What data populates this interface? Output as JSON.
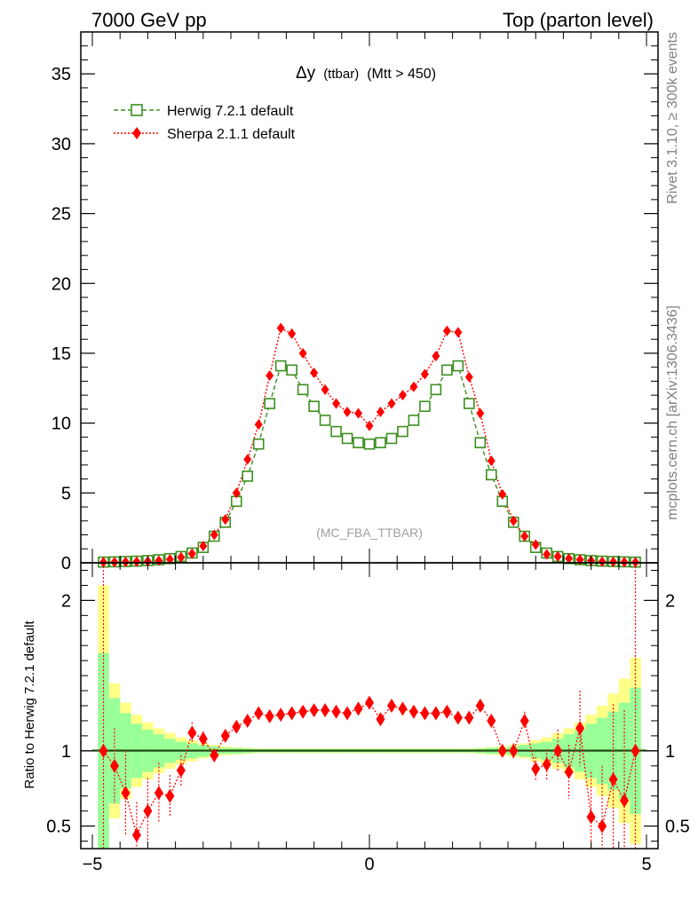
{
  "header": {
    "left": "7000 GeV pp",
    "right": "Top (parton level)"
  },
  "side": {
    "rivet": "Rivet 3.1.10, ≥ 300k events",
    "mcplots": "mcplots.cern.ch [arXiv:1306.3436]"
  },
  "colors": {
    "herwig": "#3c8f1f",
    "sherpa": "#ff0000",
    "band_inner": "#99ff99",
    "band_outer": "#ffff88"
  },
  "chart_data": {
    "type": "line",
    "title": "Δy (ttbar) (Mtt > 450)",
    "title_parts": {
      "symbol": "Δy",
      "small": "(ttbar)",
      "rest": "(Mtt > 450)"
    },
    "watermark": "(MC_FBA_TTBAR)",
    "xlim": [
      -5,
      5
    ],
    "xticks": [
      -5,
      0,
      5
    ],
    "xtick_labels": [
      "−5",
      "0",
      "5"
    ],
    "main": {
      "ylim": [
        0,
        38
      ],
      "yticks": [
        0,
        5,
        10,
        15,
        20,
        25,
        30,
        35
      ],
      "ytick_labels": [
        "0",
        "5",
        "10",
        "15",
        "20",
        "25",
        "30",
        "35"
      ]
    },
    "ratio": {
      "ylabel": "Ratio to Herwig 7.2.1 default",
      "ylim": [
        0.35,
        2.25
      ],
      "yticks": [
        0.5,
        1,
        2
      ],
      "ytick_labels": [
        "0.5",
        "1",
        "2"
      ]
    },
    "x": [
      -4.8,
      -4.6,
      -4.4,
      -4.2,
      -4.0,
      -3.8,
      -3.6,
      -3.4,
      -3.2,
      -3.0,
      -2.8,
      -2.6,
      -2.4,
      -2.2,
      -2.0,
      -1.8,
      -1.6,
      -1.4,
      -1.2,
      -1.0,
      -0.8,
      -0.6,
      -0.4,
      -0.2,
      0.0,
      0.2,
      0.4,
      0.6,
      0.8,
      1.0,
      1.2,
      1.4,
      1.6,
      1.8,
      2.0,
      2.2,
      2.4,
      2.6,
      2.8,
      3.0,
      3.2,
      3.4,
      3.6,
      3.8,
      4.0,
      4.2,
      4.4,
      4.6,
      4.8
    ],
    "series": [
      {
        "name": "Herwig 7.2.1 default",
        "style": "dashed, open squares",
        "values": [
          0.05,
          0.07,
          0.09,
          0.12,
          0.16,
          0.22,
          0.3,
          0.45,
          0.7,
          1.1,
          1.9,
          2.9,
          4.4,
          6.2,
          8.5,
          11.4,
          14.1,
          13.8,
          12.4,
          11.2,
          10.2,
          9.4,
          8.9,
          8.6,
          8.5,
          8.6,
          8.9,
          9.4,
          10.2,
          11.2,
          12.4,
          13.8,
          14.1,
          11.4,
          8.6,
          6.3,
          4.4,
          2.9,
          1.9,
          1.1,
          0.7,
          0.45,
          0.3,
          0.22,
          0.16,
          0.12,
          0.09,
          0.07,
          0.05
        ]
      },
      {
        "name": "Sherpa 2.1.1 default",
        "style": "dotted, filled diamonds",
        "values": [
          0.04,
          0.05,
          0.06,
          0.08,
          0.1,
          0.15,
          0.25,
          0.4,
          0.65,
          1.2,
          2.0,
          3.1,
          5.0,
          7.4,
          9.9,
          13.4,
          16.8,
          16.4,
          15.0,
          13.6,
          12.4,
          11.4,
          10.8,
          10.7,
          9.8,
          10.8,
          11.4,
          12.0,
          12.6,
          13.5,
          14.8,
          16.6,
          16.5,
          13.3,
          10.7,
          7.3,
          4.9,
          3.0,
          1.9,
          1.3,
          0.6,
          0.45,
          0.3,
          0.22,
          0.15,
          0.08,
          0.06,
          0.05,
          0.04
        ]
      }
    ],
    "ratio_values": [
      1.0,
      0.9,
      0.72,
      0.44,
      0.6,
      0.72,
      0.7,
      0.87,
      1.12,
      1.08,
      0.97,
      1.1,
      1.16,
      1.2,
      1.25,
      1.23,
      1.24,
      1.25,
      1.26,
      1.27,
      1.27,
      1.26,
      1.25,
      1.28,
      1.32,
      1.21,
      1.3,
      1.28,
      1.26,
      1.25,
      1.25,
      1.26,
      1.22,
      1.22,
      1.3,
      1.2,
      1.0,
      1.0,
      1.2,
      0.88,
      0.91,
      1.0,
      0.86,
      1.15,
      0.56,
      0.5,
      0.81,
      0.67,
      1.0
    ],
    "ratio_errors": [
      1.4,
      0.25,
      0.28,
      0.22,
      0.22,
      0.2,
      0.14,
      0.1,
      0.07,
      0.05,
      0.04,
      0.03,
      0.03,
      0.02,
      0.02,
      0.02,
      0.02,
      0.02,
      0.02,
      0.02,
      0.02,
      0.02,
      0.02,
      0.02,
      0.02,
      0.02,
      0.02,
      0.02,
      0.02,
      0.02,
      0.02,
      0.02,
      0.02,
      0.02,
      0.03,
      0.03,
      0.04,
      0.05,
      0.06,
      0.08,
      0.1,
      0.14,
      0.18,
      0.25,
      0.3,
      0.4,
      0.5,
      0.6,
      1.4
    ],
    "band_inner": [
      0.65,
      0.35,
      0.25,
      0.18,
      0.14,
      0.11,
      0.08,
      0.06,
      0.05,
      0.04,
      0.03,
      0.02,
      0.02,
      0.015,
      0.01,
      0.01,
      0.01,
      0.01,
      0.01,
      0.01,
      0.01,
      0.01,
      0.01,
      0.01,
      0.01,
      0.01,
      0.01,
      0.01,
      0.01,
      0.01,
      0.01,
      0.01,
      0.01,
      0.01,
      0.015,
      0.02,
      0.02,
      0.03,
      0.04,
      0.05,
      0.06,
      0.08,
      0.11,
      0.14,
      0.18,
      0.22,
      0.26,
      0.32,
      0.42
    ],
    "band_outer": [
      1.1,
      0.45,
      0.32,
      0.24,
      0.19,
      0.15,
      0.12,
      0.09,
      0.07,
      0.05,
      0.04,
      0.03,
      0.025,
      0.02,
      0.015,
      0.015,
      0.015,
      0.015,
      0.015,
      0.015,
      0.015,
      0.015,
      0.015,
      0.015,
      0.015,
      0.015,
      0.015,
      0.015,
      0.015,
      0.015,
      0.015,
      0.015,
      0.015,
      0.015,
      0.02,
      0.025,
      0.03,
      0.04,
      0.05,
      0.07,
      0.09,
      0.12,
      0.15,
      0.19,
      0.24,
      0.3,
      0.38,
      0.48,
      0.62
    ]
  }
}
